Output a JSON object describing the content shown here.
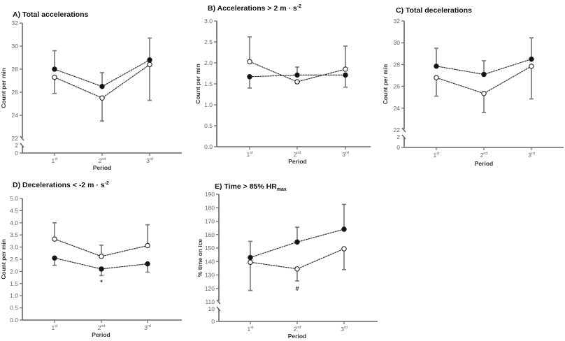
{
  "figure": {
    "description": "Five-panel line chart with error bars across three periods"
  },
  "legend_symbols": {
    "filled": "filled circle",
    "open": "open circle"
  },
  "chart_data": [
    {
      "id": "A",
      "type": "line",
      "title": "A) Total accelerations",
      "title_parts": [
        {
          "text": "A) Total accelerations"
        }
      ],
      "xlabel": "Period",
      "ylabel": "Count per min",
      "categories": [
        {
          "base": "1",
          "sup": "st"
        },
        {
          "base": "2",
          "sup": "nd"
        },
        {
          "base": "3",
          "sup": "rd"
        }
      ],
      "yticks_upper": [
        22,
        24,
        26,
        28,
        30,
        32
      ],
      "yticks_lower": [
        0,
        2
      ],
      "ylim_upper": [
        22,
        32
      ],
      "ylim_lower": [
        0,
        2
      ],
      "axis_break": true,
      "series": [
        {
          "name": "filled",
          "marker": "filled",
          "values": [
            28.0,
            26.5,
            28.8
          ],
          "error": [
            1.6,
            1.2,
            1.9
          ],
          "error_direction": "up"
        },
        {
          "name": "open",
          "marker": "open",
          "values": [
            27.3,
            25.5,
            28.4
          ],
          "error": [
            1.4,
            2.0,
            3.1
          ],
          "error_direction": "down"
        }
      ],
      "annotations": []
    },
    {
      "id": "B",
      "type": "line",
      "title": "B) Accelerations > 2 m · s-2",
      "title_parts": [
        {
          "text": "B) Accelerations > 2 m · s"
        },
        {
          "text": "-2",
          "sup": true
        }
      ],
      "xlabel": "Period",
      "ylabel": "Count per min",
      "categories": [
        {
          "base": "1",
          "sup": "st"
        },
        {
          "base": "2",
          "sup": "nd"
        },
        {
          "base": "3",
          "sup": "rd"
        }
      ],
      "yticks_upper": [
        0.0,
        0.5,
        1.0,
        1.5,
        2.0,
        2.5,
        3.0
      ],
      "ytick_format": 1,
      "ylim_upper": [
        0,
        3
      ],
      "axis_break": false,
      "series": [
        {
          "name": "filled",
          "marker": "filled",
          "values": [
            1.67,
            1.71,
            1.71
          ],
          "error": [
            0.27,
            0.19,
            0.29
          ],
          "error_direction": [
            "down",
            "up",
            "down"
          ]
        },
        {
          "name": "open",
          "marker": "open",
          "values": [
            2.03,
            1.55,
            1.85
          ],
          "error": [
            0.59,
            0.04,
            0.55
          ],
          "error_direction": [
            "up",
            "down",
            "up"
          ]
        }
      ],
      "annotations": []
    },
    {
      "id": "C",
      "type": "line",
      "title": "C) Total decelerations",
      "title_parts": [
        {
          "text": "C) Total decelerations"
        }
      ],
      "xlabel": "Period",
      "ylabel": "Count per min",
      "categories": [
        {
          "base": "1",
          "sup": "st"
        },
        {
          "base": "2",
          "sup": "nd"
        },
        {
          "base": "3",
          "sup": "rd"
        }
      ],
      "yticks_upper": [
        22,
        24,
        26,
        28,
        30,
        32
      ],
      "yticks_lower": [
        0,
        2
      ],
      "ylim_upper": [
        22,
        32
      ],
      "ylim_lower": [
        0,
        2
      ],
      "axis_break": true,
      "series": [
        {
          "name": "filled",
          "marker": "filled",
          "values": [
            27.85,
            27.1,
            28.5
          ],
          "error": [
            1.65,
            1.25,
            1.95
          ],
          "error_direction": "up"
        },
        {
          "name": "open",
          "marker": "open",
          "values": [
            26.8,
            25.35,
            27.85
          ],
          "error": [
            1.7,
            1.75,
            3.0
          ],
          "error_direction": "down"
        }
      ],
      "annotations": []
    },
    {
      "id": "D",
      "type": "line",
      "title": "D) Decelerations < -2 m · s-2",
      "title_parts": [
        {
          "text": "D) Decelerations < -2 m · s"
        },
        {
          "text": "-2",
          "sup": true
        }
      ],
      "xlabel": "Period",
      "ylabel": "Count per min",
      "categories": [
        {
          "base": "1",
          "sup": "st"
        },
        {
          "base": "2",
          "sup": "nd"
        },
        {
          "base": "3",
          "sup": "rd"
        }
      ],
      "yticks_upper": [
        0.0,
        0.5,
        1.0,
        1.5,
        2.0,
        2.5,
        3.0,
        3.5,
        4.0,
        4.5,
        5.0
      ],
      "ytick_format": 1,
      "ylim_upper": [
        0,
        5
      ],
      "axis_break": false,
      "series": [
        {
          "name": "filled",
          "marker": "filled",
          "values": [
            2.55,
            2.1,
            2.31
          ],
          "error": [
            0.3,
            0.27,
            0.34
          ],
          "error_direction": "down"
        },
        {
          "name": "open",
          "marker": "open",
          "values": [
            3.33,
            2.62,
            3.06
          ],
          "error": [
            0.67,
            0.46,
            0.86
          ],
          "error_direction": "up"
        }
      ],
      "annotations": [
        {
          "category_index": 1,
          "text": "*",
          "at_value": 1.55
        }
      ]
    },
    {
      "id": "E",
      "type": "line",
      "title": "E) Time > 85% HRmax",
      "title_parts": [
        {
          "text": "E) Time > 85% HR"
        },
        {
          "text": "max",
          "sub": true
        }
      ],
      "xlabel": "Period",
      "ylabel": "% time on ice",
      "categories": [
        {
          "base": "1",
          "sup": "st"
        },
        {
          "base": "2",
          "sup": "nd"
        },
        {
          "base": "3",
          "sup": "rd"
        }
      ],
      "yticks_upper": [
        110,
        120,
        130,
        140,
        150,
        160,
        170,
        180,
        190
      ],
      "yticks_lower": [
        0,
        10
      ],
      "ylim_upper": [
        110,
        190
      ],
      "ylim_lower": [
        0,
        10
      ],
      "axis_break": true,
      "series": [
        {
          "name": "filled",
          "marker": "filled",
          "values": [
            143,
            154.5,
            164
          ],
          "error": [
            12,
            11,
            18.5
          ],
          "error_direction": "up"
        },
        {
          "name": "open",
          "marker": "open",
          "values": [
            139.5,
            134.5,
            149.5
          ],
          "error": [
            21,
            9,
            15.5
          ],
          "error_direction": "down"
        }
      ],
      "annotations": [
        {
          "category_index": 1,
          "text": "#",
          "at_value": 120
        }
      ]
    }
  ]
}
